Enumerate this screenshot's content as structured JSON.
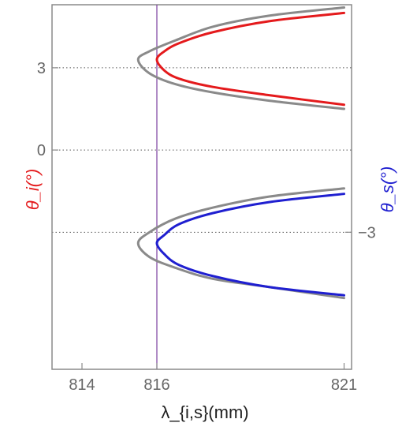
{
  "chart_data": {
    "type": "line",
    "title": "",
    "xlabel": "λ_{i,s}(mm)",
    "ylabel_left": "θ_i(°)",
    "ylabel_right": "θ_s(°)",
    "xlim": [
      813.2,
      821.2
    ],
    "ylim": [
      -8,
      5.3
    ],
    "x_ticks": [
      814,
      816,
      821
    ],
    "y_ticks_left": [
      3,
      0
    ],
    "y_ticks_right": [
      -3
    ],
    "gridlines_y": [
      3,
      0,
      -3
    ],
    "vertical_marker_x": 816,
    "colors": {
      "idler": "#e41a1c",
      "signal": "#1f1fd0",
      "gray": "#8a8a8a",
      "marker": "#7b3fa0",
      "axis": "#8a8a8a"
    },
    "series": [
      {
        "color": "#8a8a8a",
        "x": [
          821.0,
          819.0,
          817.5,
          816.5,
          815.8,
          815.5,
          815.8,
          816.5,
          817.5,
          819.0,
          821.0
        ],
        "y": [
          5.2,
          4.9,
          4.5,
          4.0,
          3.6,
          3.3,
          2.8,
          2.4,
          2.1,
          1.8,
          1.5
        ]
      },
      {
        "color": "#e41a1c",
        "x": [
          821.0,
          819.0,
          817.5,
          816.6,
          816.2,
          816.0,
          816.2,
          816.6,
          817.5,
          819.0,
          821.0
        ],
        "y": [
          5.0,
          4.7,
          4.3,
          3.9,
          3.6,
          3.3,
          2.9,
          2.6,
          2.3,
          2.0,
          1.65
        ]
      },
      {
        "color": "#8a8a8a",
        "x": [
          821.0,
          819.0,
          817.5,
          816.5,
          815.8,
          815.5,
          815.8,
          816.5,
          817.5,
          819.0,
          821.0
        ],
        "y": [
          -1.4,
          -1.7,
          -2.1,
          -2.5,
          -3.0,
          -3.4,
          -3.9,
          -4.3,
          -4.7,
          -5.0,
          -5.4
        ]
      },
      {
        "color": "#1f1fd0",
        "x": [
          821.0,
          819.0,
          817.5,
          816.6,
          816.2,
          816.0,
          816.2,
          816.6,
          817.5,
          819.0,
          821.0
        ],
        "y": [
          -1.6,
          -1.9,
          -2.3,
          -2.7,
          -3.1,
          -3.4,
          -3.8,
          -4.2,
          -4.6,
          -5.0,
          -5.3
        ]
      }
    ]
  }
}
